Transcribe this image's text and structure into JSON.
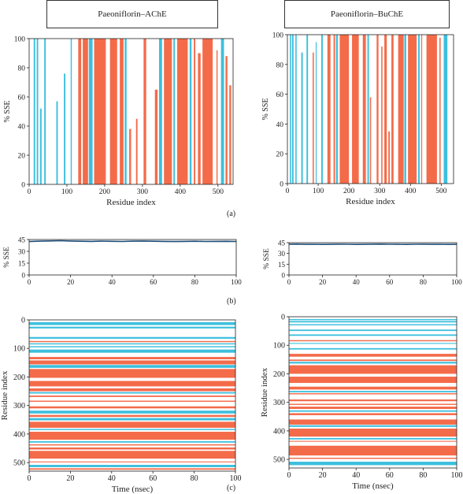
{
  "colors": {
    "helix": "#F46B4A",
    "strand": "#3DBFDD",
    "line": "#1F4E79",
    "axis": "#222222"
  },
  "panels": {
    "a_label": "(a)",
    "b_label": "(b)",
    "c_label": "(c)"
  },
  "chart_data": [
    {
      "id": "a-left",
      "type": "bar",
      "title": "Paeoniflorin–AChE",
      "xlabel": "Residue index",
      "ylabel": "% SSE",
      "xlim": [
        0,
        540
      ],
      "ylim": [
        0,
        100
      ],
      "xticks": [
        0,
        100,
        200,
        300,
        400,
        500
      ],
      "yticks": [
        0,
        20,
        40,
        60,
        80,
        100
      ],
      "series": [
        {
          "segments": [
            [
              130,
              138,
              100
            ],
            [
              142,
              156,
              100
            ],
            [
              172,
              203,
              100
            ],
            [
              214,
              233,
              100
            ],
            [
              240,
              250,
              100
            ],
            [
              265,
              270,
              38
            ],
            [
              283,
              287,
              45
            ],
            [
              303,
              310,
              100
            ],
            [
              333,
              340,
              65
            ],
            [
              357,
              378,
              100
            ],
            [
              392,
              420,
              100
            ],
            [
              436,
              440,
              100
            ],
            [
              447,
              454,
              90
            ],
            [
              459,
              486,
              100
            ],
            [
              496,
              499,
              92
            ],
            [
              520,
              525,
              88
            ],
            [
              530,
              535,
              68
            ]
          ]
        },
        {
          "segments": [
            [
              12,
              16,
              100
            ],
            [
              20,
              24,
              100
            ],
            [
              29,
              33,
              52
            ],
            [
              40,
              44,
              100
            ],
            [
              72,
              76,
              57
            ],
            [
              92,
              96,
              76
            ],
            [
              110,
              113,
              100
            ],
            [
              158,
              168,
              100
            ],
            [
              253,
              258,
              100
            ],
            [
              344,
              352,
              100
            ],
            [
              382,
              386,
              100
            ],
            [
              425,
              430,
              100
            ],
            [
              508,
              516,
              100
            ]
          ]
        }
      ]
    },
    {
      "id": "a-right",
      "type": "bar",
      "title": "Paeoniflorin–BuChE",
      "xlabel": "Residue index",
      "ylabel": "% SSE",
      "xlim": [
        0,
        540
      ],
      "ylim": [
        0,
        100
      ],
      "xticks": [
        0,
        100,
        200,
        300,
        400,
        500
      ],
      "yticks": [
        0,
        20,
        40,
        60,
        80,
        100
      ],
      "series": [
        {
          "segments": [
            [
              82,
              86,
              88
            ],
            [
              130,
              140,
              100
            ],
            [
              150,
              155,
              100
            ],
            [
              170,
              200,
              100
            ],
            [
              210,
              232,
              100
            ],
            [
              245,
              255,
              100
            ],
            [
              268,
              272,
              58
            ],
            [
              290,
              296,
              100
            ],
            [
              305,
              309,
              92
            ],
            [
              315,
              323,
              100
            ],
            [
              328,
              333,
              35
            ],
            [
              338,
              345,
              100
            ],
            [
              360,
              378,
              100
            ],
            [
              392,
              420,
              100
            ],
            [
              435,
              438,
              100
            ],
            [
              452,
              486,
              100
            ],
            [
              494,
              498,
              98
            ]
          ]
        },
        {
          "segments": [
            [
              8,
              12,
              100
            ],
            [
              15,
              20,
              100
            ],
            [
              26,
              30,
              100
            ],
            [
              45,
              50,
              88
            ],
            [
              62,
              67,
              100
            ],
            [
              92,
              95,
              95
            ],
            [
              110,
              115,
              100
            ],
            [
              158,
              164,
              100
            ],
            [
              260,
              265,
              100
            ],
            [
              380,
              386,
              100
            ],
            [
              425,
              430,
              100
            ],
            [
              508,
              520,
              100
            ]
          ]
        }
      ]
    },
    {
      "id": "b-left",
      "type": "line",
      "xlabel": "",
      "ylabel": "% SSE",
      "xlim": [
        0,
        100
      ],
      "ylim": [
        0,
        45
      ],
      "xticks": [
        0,
        20,
        40,
        60,
        80,
        100
      ],
      "yticks": [
        0,
        15,
        30,
        45
      ],
      "series": [
        {
          "x": [
            0,
            5,
            10,
            15,
            20,
            25,
            30,
            35,
            40,
            45,
            50,
            55,
            60,
            65,
            70,
            75,
            80,
            85,
            90,
            95,
            100
          ],
          "y": [
            42.4,
            42.9,
            43.2,
            43.5,
            43.1,
            42.8,
            42.6,
            43.0,
            42.7,
            42.5,
            42.9,
            43.1,
            42.8,
            42.6,
            42.4,
            42.6,
            42.8,
            42.5,
            42.6,
            42.7,
            42.5
          ]
        }
      ]
    },
    {
      "id": "b-right",
      "type": "line",
      "xlabel": "",
      "ylabel": "% SSE",
      "xlim": [
        0,
        100
      ],
      "ylim": [
        0,
        45
      ],
      "xticks": [
        0,
        20,
        40,
        60,
        80,
        100
      ],
      "yticks": [
        0,
        15,
        30,
        45
      ],
      "series": [
        {
          "x": [
            0,
            5,
            10,
            15,
            20,
            25,
            30,
            35,
            40,
            45,
            50,
            55,
            60,
            65,
            70,
            75,
            80,
            85,
            90,
            95,
            100
          ],
          "y": [
            42.9,
            43.0,
            42.7,
            42.8,
            42.6,
            42.7,
            42.9,
            42.8,
            42.6,
            42.7,
            42.9,
            43.0,
            42.8,
            42.7,
            42.6,
            42.8,
            42.9,
            42.7,
            42.8,
            42.6,
            42.7
          ]
        }
      ]
    },
    {
      "id": "c-left",
      "type": "heatmap",
      "xlabel": "Time (nsec)",
      "ylabel": "Residue index",
      "xlim": [
        0,
        100
      ],
      "ylim": [
        0,
        530
      ],
      "xticks": [
        0,
        20,
        40,
        60,
        80,
        100
      ],
      "yticks": [
        0,
        100,
        200,
        300,
        400,
        500
      ],
      "bands": [
        [
          8,
          18,
          "strand"
        ],
        [
          24,
          30,
          "strand"
        ],
        [
          60,
          66,
          "strand"
        ],
        [
          74,
          78,
          "helix"
        ],
        [
          82,
          86,
          "strand"
        ],
        [
          92,
          96,
          "strand"
        ],
        [
          104,
          115,
          "strand"
        ],
        [
          130,
          138,
          "helix"
        ],
        [
          142,
          156,
          "helix"
        ],
        [
          158,
          168,
          "strand"
        ],
        [
          172,
          203,
          "helix"
        ],
        [
          214,
          233,
          "helix"
        ],
        [
          240,
          250,
          "helix"
        ],
        [
          253,
          258,
          "strand"
        ],
        [
          265,
          270,
          "helix"
        ],
        [
          283,
          287,
          "helix"
        ],
        [
          303,
          310,
          "helix"
        ],
        [
          318,
          328,
          "strand"
        ],
        [
          333,
          340,
          "helix"
        ],
        [
          344,
          352,
          "strand"
        ],
        [
          357,
          378,
          "helix"
        ],
        [
          382,
          386,
          "strand"
        ],
        [
          392,
          420,
          "helix"
        ],
        [
          425,
          430,
          "strand"
        ],
        [
          436,
          440,
          "helix"
        ],
        [
          447,
          454,
          "helix"
        ],
        [
          459,
          486,
          "helix"
        ],
        [
          496,
          499,
          "helix"
        ],
        [
          508,
          516,
          "strand"
        ],
        [
          520,
          525,
          "helix"
        ]
      ]
    },
    {
      "id": "c-right",
      "type": "heatmap",
      "xlabel": "Time (nsec)",
      "ylabel": "Residue index",
      "xlim": [
        0,
        100
      ],
      "ylim": [
        0,
        530
      ],
      "xticks": [
        0,
        20,
        40,
        60,
        80,
        100
      ],
      "yticks": [
        0,
        100,
        200,
        300,
        400,
        500
      ],
      "bands": [
        [
          8,
          12,
          "strand"
        ],
        [
          15,
          20,
          "strand"
        ],
        [
          26,
          30,
          "strand"
        ],
        [
          45,
          50,
          "strand"
        ],
        [
          62,
          67,
          "strand"
        ],
        [
          82,
          86,
          "helix"
        ],
        [
          92,
          95,
          "strand"
        ],
        [
          110,
          115,
          "strand"
        ],
        [
          130,
          140,
          "helix"
        ],
        [
          150,
          155,
          "helix"
        ],
        [
          158,
          164,
          "strand"
        ],
        [
          170,
          200,
          "helix"
        ],
        [
          210,
          232,
          "helix"
        ],
        [
          245,
          255,
          "helix"
        ],
        [
          260,
          265,
          "strand"
        ],
        [
          268,
          272,
          "helix"
        ],
        [
          290,
          296,
          "helix"
        ],
        [
          305,
          309,
          "helix"
        ],
        [
          315,
          323,
          "helix"
        ],
        [
          328,
          333,
          "strand"
        ],
        [
          338,
          345,
          "helix"
        ],
        [
          360,
          378,
          "helix"
        ],
        [
          380,
          386,
          "strand"
        ],
        [
          392,
          420,
          "helix"
        ],
        [
          425,
          430,
          "strand"
        ],
        [
          435,
          438,
          "helix"
        ],
        [
          452,
          486,
          "helix"
        ],
        [
          494,
          498,
          "helix"
        ],
        [
          508,
          520,
          "strand"
        ]
      ]
    }
  ]
}
